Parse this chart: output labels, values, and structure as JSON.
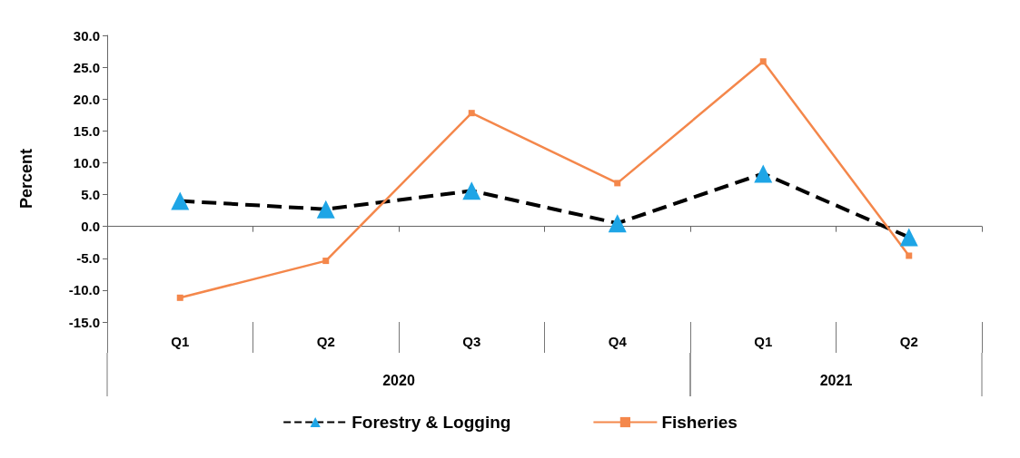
{
  "chart_data": {
    "type": "line",
    "ylabel": "Percent",
    "categories": [
      "Q1",
      "Q2",
      "Q3",
      "Q4",
      "Q1",
      "Q2"
    ],
    "annotations": [
      "2020",
      "2021"
    ],
    "series": [
      {
        "name": "Forestry & Logging",
        "color": "#000000",
        "colors": [
          "#1ea5e6",
          "#1ea5e6",
          "#1ea5e6",
          "#1ea5e6",
          "#1ea5e6",
          "#1ea5e6"
        ],
        "marker": "triangle",
        "line_style": "dashed",
        "values": [
          4.0,
          2.7,
          5.6,
          0.5,
          8.3,
          -1.7
        ]
      },
      {
        "name": "Fisheries",
        "color": "#f4874b",
        "marker": "square",
        "line_style": "solid",
        "values": [
          -11.2,
          -5.4,
          17.8,
          6.8,
          25.9,
          -4.6
        ]
      }
    ],
    "ylim": [
      -15,
      30
    ],
    "yticks": [
      {
        "value": -15,
        "label": "-15.0"
      },
      {
        "value": -10,
        "label": "-10.0"
      },
      {
        "value": -5,
        "label": "-5.0"
      },
      {
        "value": 0,
        "label": "0.0"
      },
      {
        "value": 5,
        "label": "5.0"
      },
      {
        "value": 10,
        "label": "10.0"
      },
      {
        "value": 15,
        "label": "15.0"
      },
      {
        "value": 20,
        "label": "20.0"
      },
      {
        "value": 25,
        "label": "25.0"
      },
      {
        "value": 30,
        "label": "30.0"
      }
    ],
    "legend": "bottom"
  }
}
